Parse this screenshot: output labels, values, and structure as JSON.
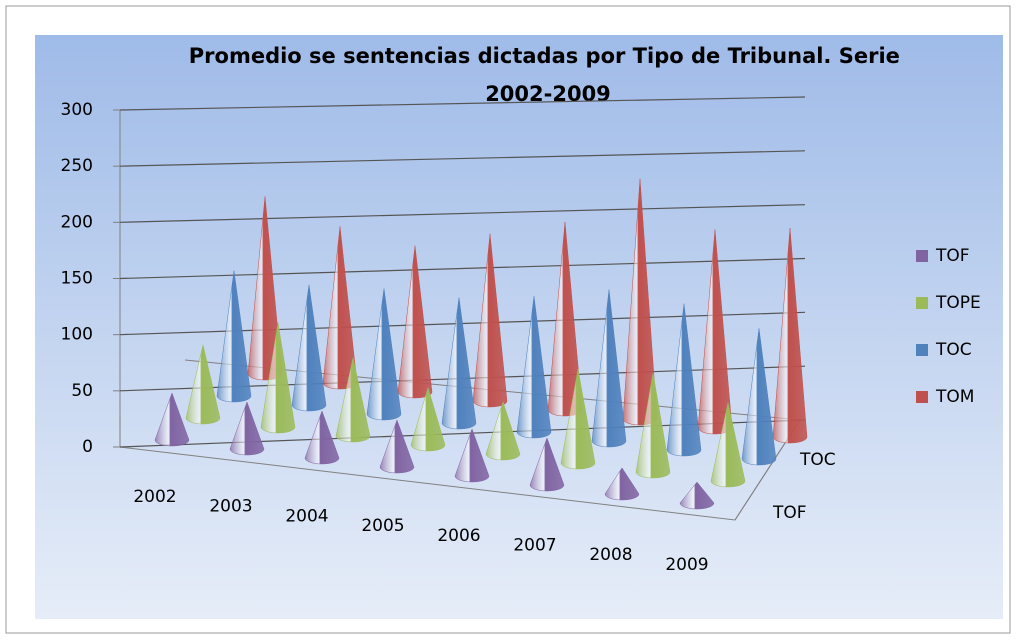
{
  "chart_data": {
    "type": "cone3d",
    "title": "Promedio se sentencias dictadas por Tipo de Tribunal. Serie 2002-2009",
    "categories": [
      "2002",
      "2003",
      "2004",
      "2005",
      "2006",
      "2007",
      "2008",
      "2009"
    ],
    "series": [
      {
        "name": "TOF",
        "color": "#8064a2",
        "values": [
          45,
          45,
          45,
          45,
          45,
          45,
          25,
          20
        ]
      },
      {
        "name": "TOPE",
        "color": "#9bbb59",
        "values": [
          70,
          100,
          75,
          55,
          50,
          90,
          95,
          75
        ]
      },
      {
        "name": "TOC",
        "color": "#4f81bd",
        "values": [
          120,
          115,
          120,
          120,
          130,
          145,
          140,
          125
        ]
      },
      {
        "name": "TOM",
        "color": "#c0504d",
        "values": [
          170,
          150,
          140,
          160,
          180,
          230,
          190,
          200
        ]
      }
    ],
    "depth_labels": [
      "TOF",
      "TOC"
    ],
    "ylim": [
      0,
      300
    ],
    "yticks": [
      0,
      50,
      100,
      150,
      200,
      250,
      300
    ],
    "grid": true,
    "legend": "right"
  }
}
